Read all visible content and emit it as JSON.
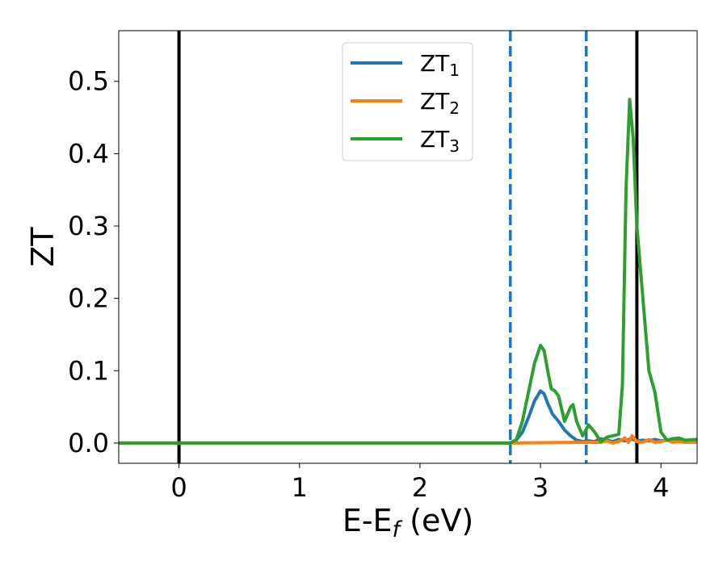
{
  "chart_data": {
    "type": "line",
    "title": "",
    "xlabel": "E-E",
    "xlabel_sub": "f",
    "xlabel_suffix": " (eV)",
    "ylabel": "ZT",
    "xlim": [
      -0.5,
      4.3
    ],
    "ylim": [
      -0.028,
      0.57
    ],
    "xticks": [
      0,
      1,
      2,
      3,
      4
    ],
    "xtick_labels": [
      "0",
      "1",
      "2",
      "3",
      "4"
    ],
    "yticks": [
      0.0,
      0.1,
      0.2,
      0.3,
      0.4,
      0.5
    ],
    "ytick_labels": [
      "0.0",
      "0.1",
      "0.2",
      "0.3",
      "0.4",
      "0.5"
    ],
    "grid": false,
    "legend_position": "top-center",
    "vlines": [
      {
        "x": 0.0,
        "style": "solid",
        "color": "#000000"
      },
      {
        "x": 3.8,
        "style": "solid",
        "color": "#000000"
      },
      {
        "x": 2.75,
        "style": "dashed",
        "color": "#1f77b4"
      },
      {
        "x": 3.38,
        "style": "dashed",
        "color": "#1f77b4"
      }
    ],
    "series": [
      {
        "name": "ZT",
        "name_sub": "1",
        "color": "#1f77b4",
        "points": [
          [
            -0.5,
            0
          ],
          [
            2.75,
            0
          ],
          [
            2.8,
            0.004
          ],
          [
            2.85,
            0.015
          ],
          [
            2.9,
            0.035
          ],
          [
            2.95,
            0.058
          ],
          [
            3.0,
            0.072
          ],
          [
            3.03,
            0.068
          ],
          [
            3.06,
            0.055
          ],
          [
            3.1,
            0.04
          ],
          [
            3.15,
            0.03
          ],
          [
            3.2,
            0.018
          ],
          [
            3.25,
            0.01
          ],
          [
            3.3,
            0.004
          ],
          [
            3.35,
            0.002
          ],
          [
            3.4,
            0.003
          ],
          [
            3.45,
            0.002
          ],
          [
            3.5,
            0.006
          ],
          [
            3.55,
            0.004
          ],
          [
            3.6,
            0.002
          ],
          [
            3.65,
            0.005
          ],
          [
            3.7,
            0.003
          ],
          [
            3.75,
            0.006
          ],
          [
            3.8,
            0.003
          ],
          [
            3.85,
            0.004
          ],
          [
            3.9,
            0.003
          ],
          [
            3.95,
            0.005
          ],
          [
            4.0,
            0.003
          ],
          [
            4.05,
            0.004
          ],
          [
            4.1,
            0.006
          ],
          [
            4.15,
            0.004
          ],
          [
            4.2,
            0.001
          ],
          [
            4.3,
            0.001
          ]
        ]
      },
      {
        "name": "ZT",
        "name_sub": "2",
        "color": "#ff7f0e",
        "points": [
          [
            -0.5,
            0
          ],
          [
            2.75,
            0
          ],
          [
            3.3,
            0.001
          ],
          [
            3.5,
            0.001
          ],
          [
            3.55,
            0.003
          ],
          [
            3.6,
            0
          ],
          [
            3.65,
            0.002
          ],
          [
            3.7,
            0.007
          ],
          [
            3.73,
            0.001
          ],
          [
            3.76,
            0.01
          ],
          [
            3.8,
            0.002
          ],
          [
            3.85,
            0.001
          ],
          [
            3.9,
            0.005
          ],
          [
            3.95,
            0.001
          ],
          [
            4.0,
            0.002
          ],
          [
            4.05,
            0.004
          ],
          [
            4.1,
            0.001
          ],
          [
            4.15,
            0.002
          ],
          [
            4.2,
            0.001
          ],
          [
            4.3,
            0.001
          ]
        ]
      },
      {
        "name": "ZT",
        "name_sub": "3",
        "color": "#2ca02c",
        "points": [
          [
            -0.5,
            0
          ],
          [
            2.75,
            0
          ],
          [
            2.8,
            0.005
          ],
          [
            2.85,
            0.03
          ],
          [
            2.9,
            0.07
          ],
          [
            2.95,
            0.11
          ],
          [
            3.0,
            0.135
          ],
          [
            3.03,
            0.128
          ],
          [
            3.06,
            0.1
          ],
          [
            3.09,
            0.075
          ],
          [
            3.12,
            0.072
          ],
          [
            3.15,
            0.065
          ],
          [
            3.2,
            0.03
          ],
          [
            3.25,
            0.05
          ],
          [
            3.27,
            0.053
          ],
          [
            3.3,
            0.03
          ],
          [
            3.35,
            0.01
          ],
          [
            3.4,
            0.025
          ],
          [
            3.45,
            0.015
          ],
          [
            3.5,
            0.002
          ],
          [
            3.55,
            0.008
          ],
          [
            3.6,
            0.01
          ],
          [
            3.65,
            0.012
          ],
          [
            3.68,
            0.08
          ],
          [
            3.71,
            0.35
          ],
          [
            3.74,
            0.475
          ],
          [
            3.77,
            0.42
          ],
          [
            3.8,
            0.3
          ],
          [
            3.85,
            0.2
          ],
          [
            3.9,
            0.1
          ],
          [
            3.95,
            0.07
          ],
          [
            4.0,
            0.015
          ],
          [
            4.05,
            0.004
          ],
          [
            4.1,
            0.006
          ],
          [
            4.15,
            0.007
          ],
          [
            4.2,
            0.004
          ],
          [
            4.3,
            0.005
          ]
        ]
      }
    ]
  }
}
